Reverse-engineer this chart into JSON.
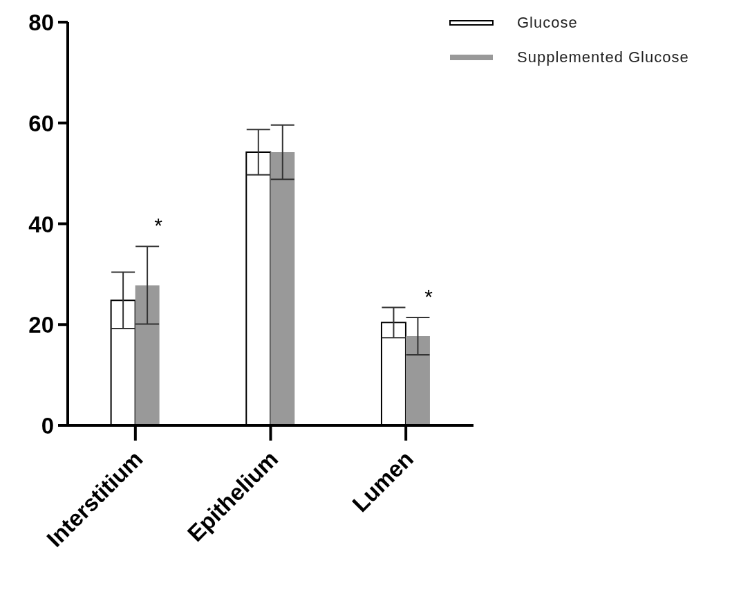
{
  "chart_data": {
    "type": "bar",
    "categories": [
      "Interstitium",
      "Epithelium",
      "Lumen"
    ],
    "series": [
      {
        "name": "Glucose",
        "color": "#ffffff",
        "values": [
          24.8,
          54.2,
          20.4
        ],
        "errors": [
          5.6,
          4.5,
          3
        ]
      },
      {
        "name": "Supplemented Glucose",
        "color": "#999999",
        "values": [
          27.8,
          54.2,
          17.7
        ],
        "errors": [
          7.7,
          5.4,
          3.7
        ]
      }
    ],
    "ylim": [
      0,
      80
    ],
    "yticks": [
      0,
      20,
      40,
      60,
      80
    ],
    "grid": false,
    "legend": "top right",
    "annotations": [
      "*",
      "*"
    ]
  }
}
